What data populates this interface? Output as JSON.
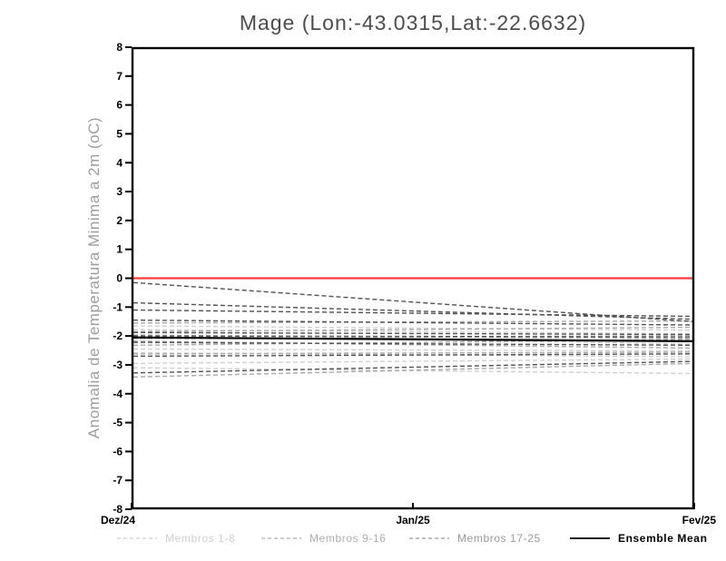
{
  "page": {
    "background": "#ffffff",
    "frame_color": "#000000"
  },
  "chart_data": {
    "type": "line",
    "title": "Mage (Lon:-43.0315,Lat:-22.6632)",
    "ylabel": "Anomalia de Temperatura Minima a 2m (oC)",
    "xlabel": "",
    "ylim": [
      -8,
      8
    ],
    "yticks": [
      8,
      7,
      6,
      5,
      4,
      3,
      2,
      1,
      0,
      -1,
      -2,
      -3,
      -4,
      -5,
      -6,
      -7,
      -8
    ],
    "x_ticklabels": [
      "Dez/24",
      "Jan/25",
      "Fev/25"
    ],
    "x_tick_positions": [
      0,
      0.5,
      1
    ],
    "grid": false,
    "legend_position": "bottom",
    "zero_line": {
      "value": 0,
      "color": "#fa3c3c"
    },
    "series": [
      {
        "name": "Membros 1-8",
        "color": "#d0d0d0",
        "style": "dashed",
        "x": [
          0,
          1
        ],
        "members": [
          [
            -1.65,
            -1.8
          ],
          [
            -1.78,
            -1.92
          ],
          [
            -1.95,
            -2.28
          ],
          [
            -2.1,
            -1.98
          ],
          [
            -2.45,
            -2.52
          ],
          [
            -2.58,
            -2.72
          ],
          [
            -2.95,
            -2.8
          ],
          [
            -3.1,
            -3.3
          ]
        ]
      },
      {
        "name": "Membros 9-16",
        "color": "#a9a9a9",
        "style": "dashed",
        "x": [
          0,
          1
        ],
        "members": [
          [
            -1.55,
            -1.48
          ],
          [
            -1.85,
            -1.7
          ],
          [
            -1.98,
            -2.08
          ],
          [
            -2.06,
            -2.18
          ],
          [
            -2.18,
            -2.42
          ],
          [
            -2.32,
            -2.12
          ],
          [
            -2.62,
            -2.56
          ],
          [
            -3.42,
            -2.95
          ]
        ]
      },
      {
        "name": "Membros 17-25",
        "color": "#525252",
        "style": "dashed",
        "x": [
          0,
          1
        ],
        "members": [
          [
            -0.15,
            -1.5
          ],
          [
            -0.85,
            -1.42
          ],
          [
            -1.1,
            -1.32
          ],
          [
            -1.45,
            -1.62
          ],
          [
            -1.88,
            -1.95
          ],
          [
            -2.0,
            -2.03
          ],
          [
            -2.22,
            -2.32
          ],
          [
            -2.7,
            -2.62
          ],
          [
            -3.28,
            -2.88
          ]
        ]
      },
      {
        "name": "Ensemble Mean",
        "color": "#000000",
        "style": "solid",
        "x": [
          0,
          1
        ],
        "members": [
          [
            -2.05,
            -2.18
          ]
        ]
      }
    ]
  },
  "legend": {
    "items": [
      {
        "label": "Membros 1-8",
        "color": "#cfcfcf",
        "line_style": "dashed",
        "bold": false
      },
      {
        "label": "Membros 9-16",
        "color": "#aeaeae",
        "line_style": "dashed",
        "bold": false
      },
      {
        "label": "Membros 17-25",
        "color": "#9a9a9a",
        "line_style": "dashed",
        "bold": false
      },
      {
        "label": "Ensemble Mean",
        "color": "#000000",
        "line_style": "solid",
        "bold": true
      }
    ]
  }
}
